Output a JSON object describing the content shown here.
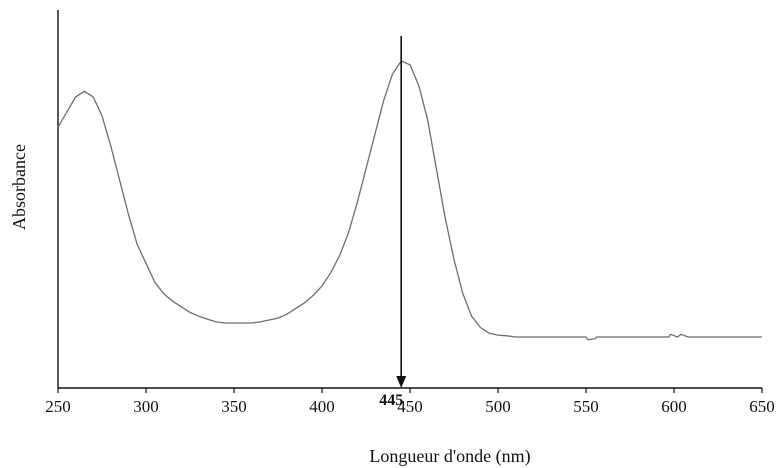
{
  "chart_data": {
    "type": "line",
    "title": "",
    "xlabel": "Longueur d'onde (nm)",
    "ylabel": "Absorbance",
    "xlim": [
      250,
      650
    ],
    "ylim": [
      0,
      1
    ],
    "x_ticks": [
      250,
      300,
      350,
      400,
      450,
      500,
      550,
      600,
      650
    ],
    "y_ticks_shown": false,
    "grid": false,
    "legend": "none",
    "series": [
      {
        "color": "#6e6e6e",
        "points": [
          [
            250,
            0.69
          ],
          [
            255,
            0.73
          ],
          [
            260,
            0.77
          ],
          [
            265,
            0.785
          ],
          [
            270,
            0.77
          ],
          [
            275,
            0.72
          ],
          [
            280,
            0.64
          ],
          [
            285,
            0.55
          ],
          [
            290,
            0.46
          ],
          [
            295,
            0.38
          ],
          [
            300,
            0.33
          ],
          [
            305,
            0.28
          ],
          [
            310,
            0.25
          ],
          [
            315,
            0.23
          ],
          [
            320,
            0.215
          ],
          [
            325,
            0.2
          ],
          [
            330,
            0.19
          ],
          [
            335,
            0.182
          ],
          [
            340,
            0.175
          ],
          [
            345,
            0.172
          ],
          [
            350,
            0.172
          ],
          [
            355,
            0.172
          ],
          [
            360,
            0.172
          ],
          [
            365,
            0.175
          ],
          [
            370,
            0.18
          ],
          [
            375,
            0.185
          ],
          [
            380,
            0.195
          ],
          [
            385,
            0.21
          ],
          [
            390,
            0.225
          ],
          [
            395,
            0.245
          ],
          [
            400,
            0.27
          ],
          [
            405,
            0.305
          ],
          [
            410,
            0.35
          ],
          [
            415,
            0.41
          ],
          [
            420,
            0.49
          ],
          [
            425,
            0.58
          ],
          [
            430,
            0.67
          ],
          [
            435,
            0.76
          ],
          [
            440,
            0.83
          ],
          [
            445,
            0.865
          ],
          [
            450,
            0.855
          ],
          [
            455,
            0.8
          ],
          [
            460,
            0.71
          ],
          [
            465,
            0.58
          ],
          [
            470,
            0.45
          ],
          [
            475,
            0.34
          ],
          [
            480,
            0.25
          ],
          [
            485,
            0.19
          ],
          [
            490,
            0.16
          ],
          [
            495,
            0.145
          ],
          [
            500,
            0.14
          ],
          [
            505,
            0.138
          ],
          [
            510,
            0.135
          ],
          [
            520,
            0.135
          ],
          [
            530,
            0.135
          ],
          [
            540,
            0.135
          ],
          [
            550,
            0.135
          ],
          [
            551,
            0.128
          ],
          [
            555,
            0.13
          ],
          [
            556,
            0.135
          ],
          [
            560,
            0.135
          ],
          [
            570,
            0.135
          ],
          [
            580,
            0.135
          ],
          [
            590,
            0.135
          ],
          [
            597,
            0.135
          ],
          [
            598,
            0.142
          ],
          [
            602,
            0.135
          ],
          [
            604,
            0.142
          ],
          [
            608,
            0.135
          ],
          [
            620,
            0.135
          ],
          [
            640,
            0.135
          ],
          [
            650,
            0.135
          ]
        ]
      }
    ],
    "annotations": [
      {
        "text": "445",
        "x": 445,
        "type": "arrow-down"
      }
    ]
  }
}
